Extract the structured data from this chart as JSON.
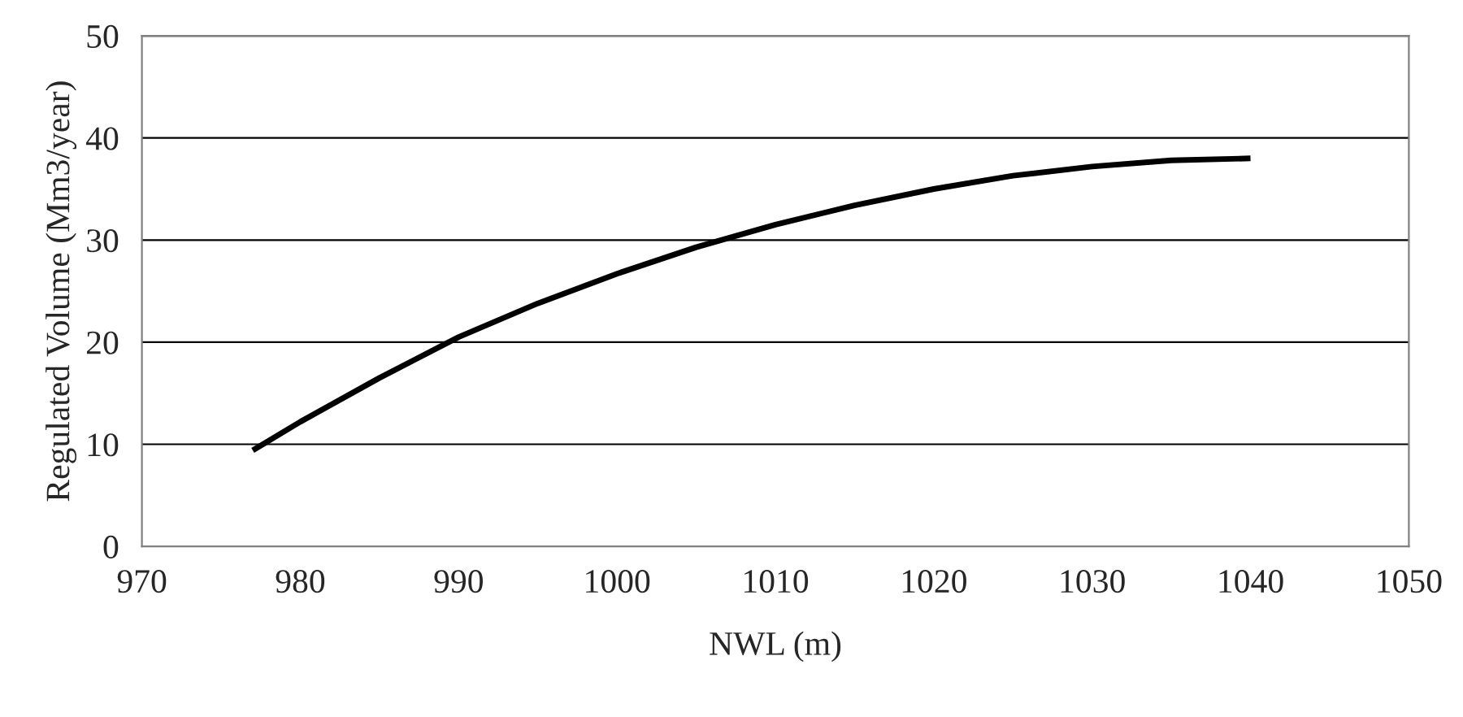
{
  "chart_data": {
    "type": "line",
    "xlabel": "NWL (m)",
    "ylabel": "Regulated Volume (Mm3/year)",
    "x": [
      977,
      980,
      985,
      990,
      995,
      1000,
      1005,
      1010,
      1015,
      1020,
      1025,
      1030,
      1035,
      1040
    ],
    "series": [
      {
        "color": "#000000",
        "values": [
          9.4,
          12.2,
          16.5,
          20.5,
          23.8,
          26.7,
          29.3,
          31.5,
          33.4,
          35.0,
          36.3,
          37.2,
          37.8,
          38.0
        ]
      }
    ],
    "xlim": [
      970,
      1050
    ],
    "xticks": [
      970,
      980,
      990,
      1000,
      1010,
      1020,
      1030,
      1040,
      1050
    ],
    "ylim": [
      0,
      50
    ],
    "yticks": [
      0,
      10,
      20,
      30,
      40,
      50
    ],
    "grid": "y"
  }
}
